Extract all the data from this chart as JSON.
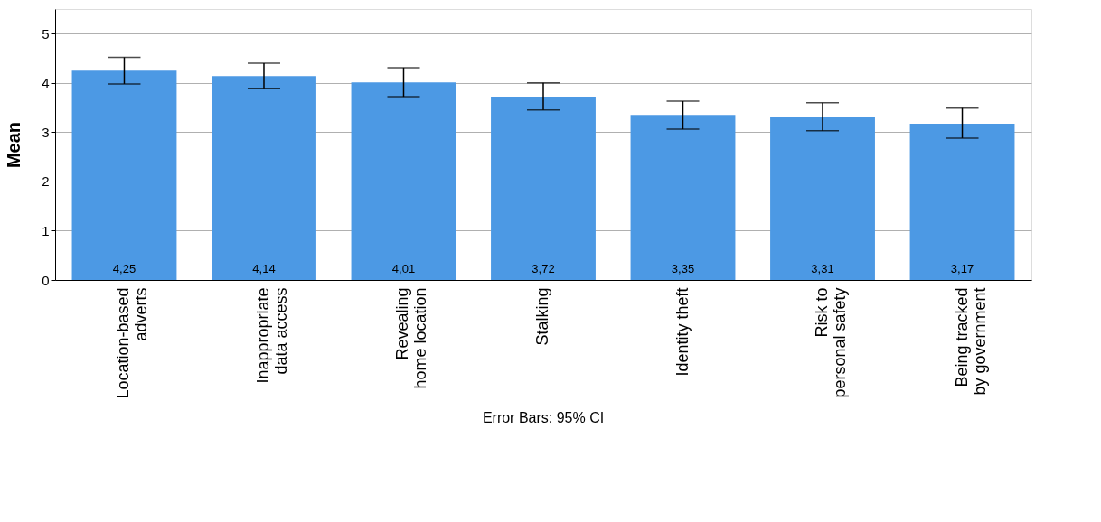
{
  "chart_data": {
    "type": "bar",
    "ylabel": "Mean",
    "categories": [
      "Location-based\nadverts",
      "Inappropriate\ndata access",
      "Revealing\nhome location",
      "Stalking",
      "Identity theft",
      "Risk to\npersonal safety",
      "Being tracked\nby government"
    ],
    "values": [
      4.25,
      4.14,
      4.01,
      3.72,
      3.35,
      3.31,
      3.17
    ],
    "value_labels": [
      "4,25",
      "4,14",
      "4,01",
      "3,72",
      "3,35",
      "3,31",
      "3,17"
    ],
    "errors": [
      [
        3.98,
        4.52
      ],
      [
        3.89,
        4.4
      ],
      [
        3.72,
        4.31
      ],
      [
        3.45,
        4.0
      ],
      [
        3.06,
        3.63
      ],
      [
        3.03,
        3.6
      ],
      [
        2.88,
        3.49
      ]
    ],
    "color": "#4c99e4",
    "ylim": [
      0,
      5.5
    ],
    "yticks": [
      0,
      1,
      2,
      3,
      4,
      5
    ],
    "grid": "y",
    "annotations": [
      "Error Bars: 95% CI"
    ]
  }
}
